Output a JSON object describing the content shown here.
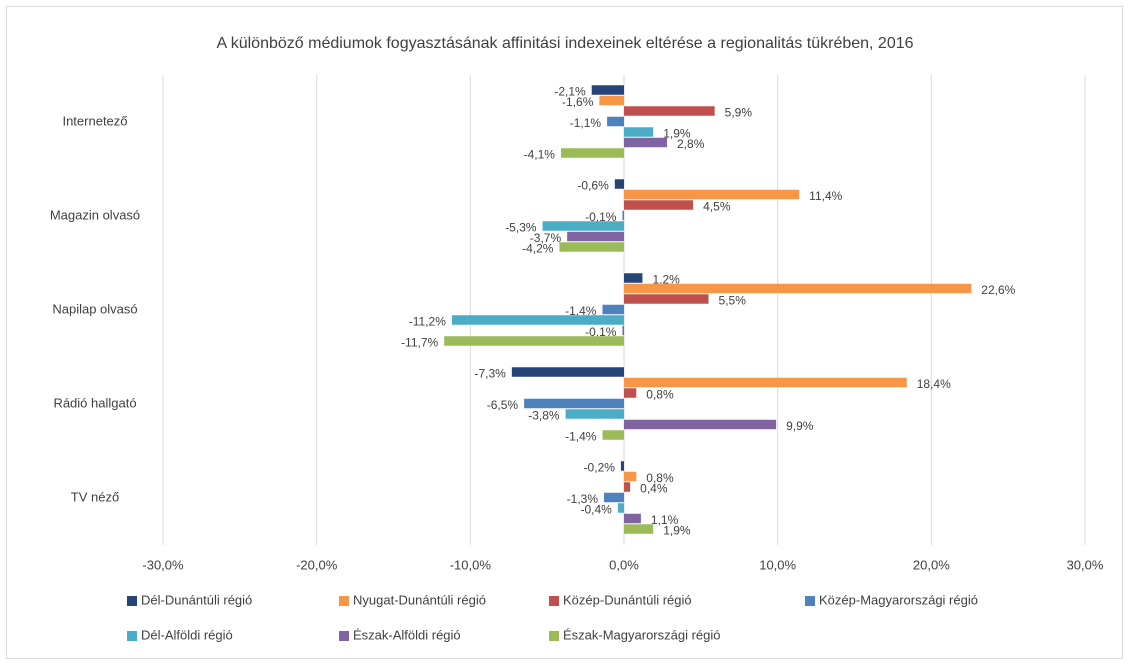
{
  "chart_data": {
    "type": "hbar",
    "title": "A különböző médiumok fogyasztásának affinitási indexeinek eltérése a regionalitás tükrében, 2016",
    "categories": [
      "Internetező",
      "Magazin olvasó",
      "Napilap olvasó",
      "Rádió hallgató",
      "TV néző"
    ],
    "series": [
      {
        "name": "Dél-Dunántúli régió",
        "color": "#264478",
        "values": [
          -2.1,
          -0.6,
          1.2,
          -7.3,
          -0.2
        ],
        "value_labels": [
          "-2,1%",
          "-0,6%",
          "1,2%",
          "-7,3%",
          "-0,2%"
        ]
      },
      {
        "name": "Nyugat-Dunántúli régió",
        "color": "#f79646",
        "values": [
          -1.6,
          11.4,
          22.6,
          18.4,
          0.8
        ],
        "value_labels": [
          "-1,6%",
          "11,4%",
          "22,6%",
          "18,4%",
          "0,8%"
        ]
      },
      {
        "name": "Közép-Dunántúli régió",
        "color": "#c0504d",
        "values": [
          5.9,
          4.5,
          5.5,
          0.8,
          0.4
        ],
        "value_labels": [
          "5,9%",
          "4,5%",
          "5,5%",
          "0,8%",
          "0,4%"
        ]
      },
      {
        "name": "Közép-Magyarországi régió",
        "color": "#4f81bd",
        "values": [
          -1.1,
          -0.1,
          -1.4,
          -6.5,
          -1.3
        ],
        "value_labels": [
          "-1,1%",
          "-0,1%",
          "-1,4%",
          "-6,5%",
          "-1,3%"
        ]
      },
      {
        "name": "Dél-Alföldi régió",
        "color": "#4bacc6",
        "values": [
          1.9,
          -5.3,
          -11.2,
          -3.8,
          -0.4
        ],
        "value_labels": [
          "1,9%",
          "-5,3%",
          "-11,2%",
          "-3,8%",
          "-0,4%"
        ]
      },
      {
        "name": "Észak-Alföldi régió",
        "color": "#8064a2",
        "values": [
          2.8,
          -3.7,
          -0.1,
          9.9,
          1.1
        ],
        "value_labels": [
          "2,8%",
          "-3,7%",
          "-0,1%",
          "9,9%",
          "1,1%"
        ]
      },
      {
        "name": "Észak-Magyarországi régió",
        "color": "#9bbb59",
        "values": [
          -4.1,
          -4.2,
          -11.7,
          -1.4,
          1.9
        ],
        "value_labels": [
          "-4,1%",
          "-4,2%",
          "-11,7%",
          "-1,4%",
          "1,9%"
        ]
      }
    ],
    "xlim": [
      -30,
      30
    ],
    "xticks": [
      {
        "value": -30,
        "label": "-30,0%"
      },
      {
        "value": -20,
        "label": "-20,0%"
      },
      {
        "value": -10,
        "label": "-10,0%"
      },
      {
        "value": 0,
        "label": "0,0%"
      },
      {
        "value": 10,
        "label": "10,0%"
      },
      {
        "value": 20,
        "label": "20,0%"
      },
      {
        "value": 30,
        "label": "30,0%"
      }
    ],
    "grid": true,
    "legend": "bottom"
  }
}
